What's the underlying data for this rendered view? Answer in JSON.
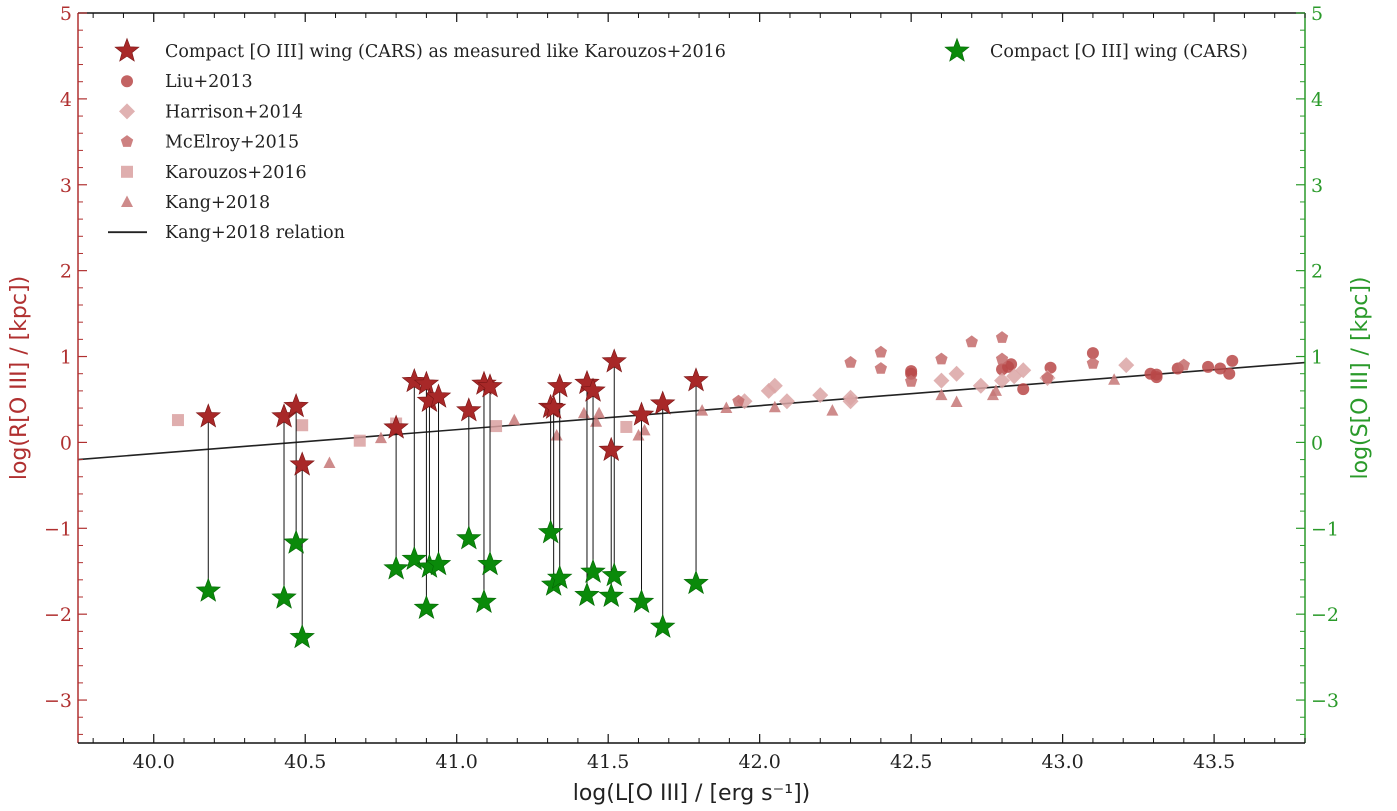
{
  "colors": {
    "left_axis": "#b03030",
    "right_axis": "#2a9a2a",
    "star_red": "#a82828",
    "star_green": "#0a8a0a",
    "liu": "#b84848",
    "harrison": "#dba5a5",
    "mcelroy": "#c46b6b",
    "karouzos": "#d9a0a0",
    "kang": "#c67777",
    "relation": "#222222"
  },
  "chart_data": {
    "type": "scatter",
    "xlabel": "log(L[O III] / [erg s⁻¹])",
    "ylabel_left": "log(R[O III] / [kpc])",
    "ylabel_right": "log(S[O III] / [kpc])",
    "xlim": [
      39.75,
      43.8
    ],
    "ylim": [
      -3.5,
      5
    ],
    "x_ticks": [
      40.0,
      40.5,
      41.0,
      41.5,
      42.0,
      42.5,
      43.0,
      43.5
    ],
    "x_tick_labels": [
      "40.0",
      "40.5",
      "41.0",
      "41.5",
      "42.0",
      "42.5",
      "43.0",
      "43.5"
    ],
    "y_ticks": [
      -3,
      -2,
      -1,
      0,
      1,
      2,
      3,
      4,
      5
    ],
    "y_tick_labels": [
      "−3",
      "−2",
      "−1",
      "0",
      "1",
      "2",
      "3",
      "4",
      "5"
    ],
    "legend_left": [
      {
        "label": "Compact [O III] wing (CARS) as measured like Karouzos+2016",
        "marker": "star",
        "color": "#a82828"
      },
      {
        "label": "Liu+2013",
        "marker": "circle",
        "color": "#b84848"
      },
      {
        "label": "Harrison+2014",
        "marker": "diamond",
        "color": "#dba5a5"
      },
      {
        "label": "McElroy+2015",
        "marker": "pentagon",
        "color": "#c46b6b"
      },
      {
        "label": "Karouzos+2016",
        "marker": "square",
        "color": "#d9a0a0"
      },
      {
        "label": "Kang+2018",
        "marker": "triangle",
        "color": "#c67777"
      },
      {
        "label": "Kang+2018 relation",
        "marker": "line",
        "color": "#222222"
      }
    ],
    "legend_right": [
      {
        "label": "Compact [O III] wing (CARS)",
        "marker": "star",
        "color": "#0a8a0a"
      }
    ],
    "series": [
      {
        "name": "Compact [O III] wing (CARS) as measured like Karouzos+2016",
        "marker": "star",
        "x": [
          40.18,
          40.43,
          40.47,
          40.49,
          40.8,
          40.86,
          40.9,
          40.91,
          40.94,
          41.04,
          41.09,
          41.11,
          41.31,
          41.32,
          41.34,
          41.43,
          41.45,
          41.51,
          41.52,
          41.61,
          41.68,
          41.79
        ],
        "y": [
          0.3,
          0.3,
          0.42,
          -0.26,
          0.17,
          0.71,
          0.68,
          0.48,
          0.53,
          0.37,
          0.68,
          0.65,
          0.41,
          0.4,
          0.65,
          0.69,
          0.6,
          -0.09,
          0.94,
          0.32,
          0.45,
          0.72
        ]
      },
      {
        "name": "Compact [O III] wing (CARS)",
        "marker": "star",
        "x": [
          40.18,
          40.43,
          40.47,
          40.49,
          40.8,
          40.86,
          40.9,
          40.91,
          40.94,
          41.04,
          41.09,
          41.11,
          41.31,
          41.32,
          41.34,
          41.43,
          41.45,
          41.51,
          41.52,
          41.61,
          41.68,
          41.79
        ],
        "y": [
          -1.73,
          -1.81,
          -1.17,
          -2.27,
          -1.47,
          -1.36,
          -1.93,
          -1.45,
          -1.42,
          -1.12,
          -1.86,
          -1.42,
          -1.05,
          -1.66,
          -1.58,
          -1.78,
          -1.51,
          -1.79,
          -1.55,
          -1.86,
          -2.15,
          -1.64
        ]
      },
      {
        "name": "Liu+2013",
        "marker": "circle",
        "x": [
          42.5,
          42.5,
          42.8,
          42.82,
          42.83,
          42.87,
          42.96,
          43.1,
          43.29,
          43.31,
          43.31,
          43.38,
          43.48,
          43.52,
          43.55,
          43.56
        ],
        "y": [
          0.8,
          0.83,
          0.85,
          0.88,
          0.91,
          0.62,
          0.87,
          1.04,
          0.8,
          0.76,
          0.79,
          0.86,
          0.88,
          0.86,
          0.8,
          0.95
        ]
      },
      {
        "name": "Harrison+2014",
        "marker": "diamond",
        "x": [
          41.95,
          42.03,
          42.05,
          42.09,
          42.2,
          42.3,
          42.3,
          42.6,
          42.65,
          42.73,
          42.8,
          42.84,
          42.87,
          42.95,
          43.21
        ],
        "y": [
          0.48,
          0.6,
          0.66,
          0.48,
          0.55,
          0.48,
          0.52,
          0.72,
          0.8,
          0.66,
          0.72,
          0.77,
          0.84,
          0.75,
          0.9
        ]
      },
      {
        "name": "McElroy+2015",
        "marker": "pentagon",
        "x": [
          41.93,
          42.3,
          42.4,
          42.4,
          42.5,
          42.6,
          42.7,
          42.8,
          42.8,
          42.95,
          43.1,
          43.4
        ],
        "y": [
          0.48,
          0.93,
          1.05,
          0.86,
          0.71,
          0.97,
          1.17,
          1.22,
          0.97,
          0.75,
          0.92,
          0.9
        ]
      },
      {
        "name": "Karouzos+2016",
        "marker": "square",
        "x": [
          40.08,
          40.49,
          40.68,
          40.8,
          41.13,
          41.56
        ],
        "y": [
          0.26,
          0.2,
          0.02,
          0.22,
          0.19,
          0.18
        ]
      },
      {
        "name": "Kang+2018",
        "marker": "triangle",
        "x": [
          40.58,
          40.75,
          41.19,
          41.33,
          41.42,
          41.46,
          41.47,
          41.6,
          41.62,
          41.81,
          41.89,
          42.05,
          42.24,
          42.6,
          42.65,
          42.77,
          42.78,
          43.17
        ],
        "y": [
          -0.24,
          0.05,
          0.26,
          0.08,
          0.34,
          0.24,
          0.34,
          0.08,
          0.14,
          0.37,
          0.4,
          0.41,
          0.37,
          0.55,
          0.47,
          0.55,
          0.6,
          0.73
        ]
      }
    ],
    "relation": {
      "name": "Kang+2018 relation",
      "x": [
        39.75,
        43.8
      ],
      "y": [
        -0.2,
        0.93
      ]
    }
  }
}
